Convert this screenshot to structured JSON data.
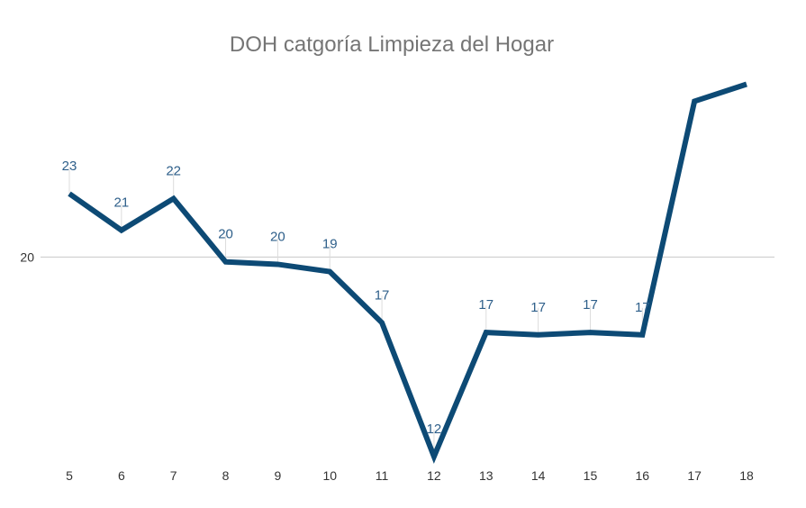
{
  "chart_data": {
    "type": "line",
    "title": "DOH catgoría Limpieza del Hogar",
    "xlabel": "",
    "ylabel": "",
    "categories": [
      "5",
      "6",
      "7",
      "8",
      "9",
      "10",
      "11",
      "12",
      "13",
      "14",
      "15",
      "16",
      "17",
      "18"
    ],
    "values": [
      22.6,
      21.1,
      22.4,
      19.8,
      19.7,
      19.4,
      17.3,
      11.8,
      16.9,
      16.8,
      16.9,
      16.8,
      26.4,
      27.1
    ],
    "data_labels": [
      "23",
      "21",
      "22",
      "20",
      "20",
      "19",
      "17",
      "12",
      "17",
      "17",
      "17",
      "17",
      "",
      ""
    ],
    "y_ticks": [
      "20"
    ],
    "ylim": [
      11.5,
      27.6
    ],
    "grid": true,
    "legend": "none",
    "line_color": "#0d4a75",
    "label_color": "#2e5f8a"
  }
}
